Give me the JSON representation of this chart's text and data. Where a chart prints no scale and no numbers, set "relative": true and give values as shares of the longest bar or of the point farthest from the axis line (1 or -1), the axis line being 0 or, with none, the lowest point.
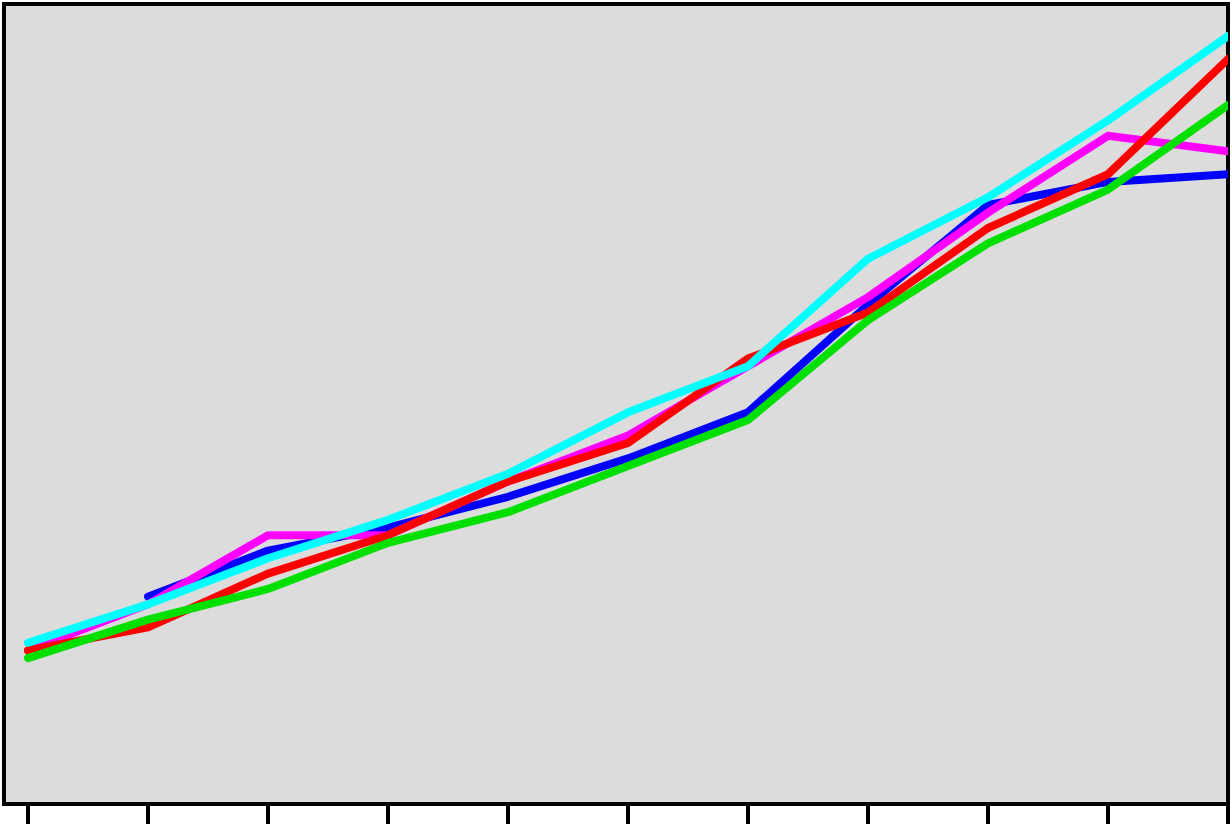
{
  "chart_data": {
    "type": "line",
    "relative": true,
    "categories": [
      null,
      null,
      null,
      null,
      null,
      null,
      null,
      null,
      null,
      null,
      null
    ],
    "series": [
      {
        "color": "#0000ff",
        "values": [
          null,
          0.27,
          0.33,
          0.36,
          0.4,
          0.45,
          0.51,
          0.65,
          0.78,
          0.81,
          0.82
        ]
      },
      {
        "color": "#ff00ff",
        "values": [
          0.2,
          0.26,
          0.35,
          0.35,
          0.42,
          0.48,
          0.57,
          0.66,
          0.77,
          0.87,
          0.85
        ]
      },
      {
        "color": "#ff0000",
        "values": [
          0.2,
          0.23,
          0.3,
          0.35,
          0.42,
          0.47,
          0.58,
          0.64,
          0.75,
          0.82,
          0.97
        ]
      },
      {
        "color": "#00e000",
        "values": [
          0.19,
          0.24,
          0.28,
          0.34,
          0.38,
          0.44,
          0.5,
          0.63,
          0.73,
          0.8,
          0.91
        ]
      },
      {
        "color": "#00ffff",
        "values": [
          0.21,
          0.26,
          0.32,
          0.37,
          0.43,
          0.51,
          0.57,
          0.71,
          0.79,
          0.89,
          1
        ]
      }
    ],
    "grid": false,
    "marker": "none",
    "line_style": "solid"
  }
}
